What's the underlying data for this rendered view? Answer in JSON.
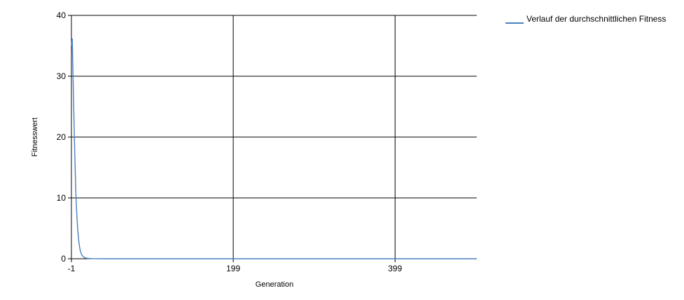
{
  "chart_data": {
    "type": "line",
    "title": "",
    "xlabel": "Generation",
    "ylabel": "Fitnesswert",
    "xlim": [
      -1,
      500
    ],
    "ylim": [
      0,
      40
    ],
    "x_ticks": [
      "-1",
      "199",
      "399"
    ],
    "x_tick_values": [
      -1,
      199,
      399
    ],
    "y_ticks": [
      "0",
      "10",
      "20",
      "30",
      "40"
    ],
    "y_tick_values": [
      0,
      10,
      20,
      30,
      40
    ],
    "grid": true,
    "legend_position": "top-right",
    "series": [
      {
        "name": "Verlauf der durchschnittlichen Fitness",
        "color": "#4a7fc1",
        "x": [
          -1,
          0,
          1,
          2,
          3,
          4,
          5,
          6,
          7,
          8,
          9,
          10,
          11,
          12,
          14,
          16,
          18,
          20,
          25,
          30,
          40,
          60,
          80,
          100,
          150,
          200,
          250,
          300,
          350,
          400,
          450,
          500
        ],
        "y": [
          35,
          36.2,
          30,
          24,
          18,
          13,
          9,
          6.5,
          4.5,
          3,
          2,
          1.3,
          0.9,
          0.6,
          0.3,
          0.15,
          0.08,
          0.05,
          0.02,
          0.01,
          0,
          0,
          0,
          0,
          0,
          0,
          0,
          0,
          0,
          0,
          0,
          0
        ]
      }
    ]
  }
}
